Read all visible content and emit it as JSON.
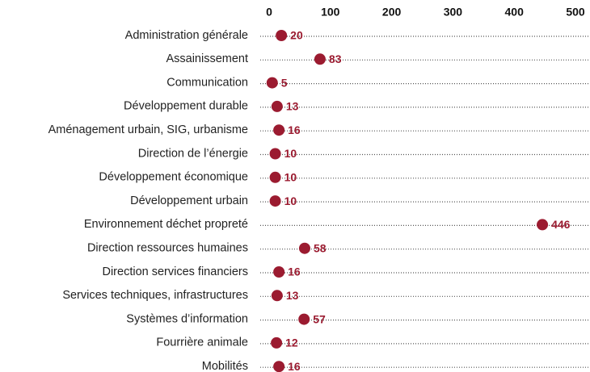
{
  "chart_data": {
    "type": "dot",
    "categories": [
      "Administration générale",
      "Assainissement",
      "Communication",
      "Développement durable",
      "Aménagement urbain, SIG, urbanisme",
      "Direction de l’énergie",
      "Développement économique",
      "Développement urbain",
      "Environnement déchet propreté",
      "Direction ressources humaines",
      "Direction services financiers",
      "Services techniques, infrastructures",
      "Systèmes d’information",
      "Fourrière animale",
      "Mobilités"
    ],
    "values": [
      20,
      83,
      5,
      13,
      16,
      10,
      10,
      10,
      446,
      58,
      16,
      13,
      57,
      12,
      16
    ],
    "color": "#9b1b30",
    "xlim": [
      0,
      500
    ],
    "xticks": [
      0,
      100,
      200,
      300,
      400,
      500
    ],
    "grid": false
  }
}
